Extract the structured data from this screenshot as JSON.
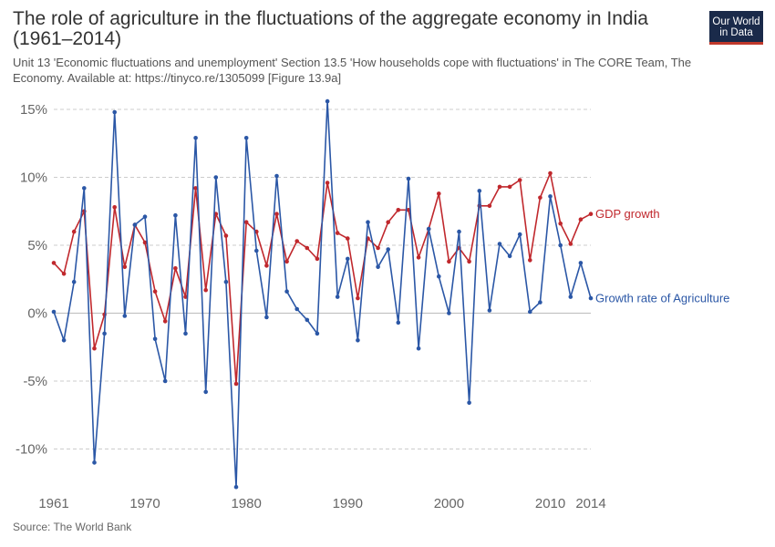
{
  "header": {
    "title": "The role of agriculture in the fluctuations of the aggregate economy in India (1961–2014)",
    "subtitle": "Unit 13 'Economic fluctuations and unemployment' Section 13.5 'How households cope with fluctuations' in The CORE Team, The Economy. Available at: https://tinyco.re/1305099 [Figure 13.9a]"
  },
  "logo": {
    "line1": "Our World",
    "line2": "in Data"
  },
  "footer": {
    "source": "Source: The World Bank"
  },
  "colors": {
    "gdp": "#c0282d",
    "agri": "#2b57a6",
    "grid": "#cccccc",
    "zero": "#bbbbbb"
  },
  "chart_data": {
    "type": "line",
    "title": "The role of agriculture in the fluctuations of the aggregate economy in India (1961–2014)",
    "xlim": [
      1961,
      2014
    ],
    "ylim": [
      -13,
      16
    ],
    "x_ticks": [
      1961,
      1970,
      1980,
      1990,
      2000,
      2010,
      2014
    ],
    "y_ticks": [
      {
        "value": 15,
        "label": "15%"
      },
      {
        "value": 10,
        "label": "10%"
      },
      {
        "value": 5,
        "label": "5%"
      },
      {
        "value": 0,
        "label": "0%"
      },
      {
        "value": -5,
        "label": "-5%"
      },
      {
        "value": -10,
        "label": "-10%"
      }
    ],
    "grid": true,
    "x": [
      1961,
      1962,
      1963,
      1964,
      1965,
      1966,
      1967,
      1968,
      1969,
      1970,
      1971,
      1972,
      1973,
      1974,
      1975,
      1976,
      1977,
      1978,
      1979,
      1980,
      1981,
      1982,
      1983,
      1984,
      1985,
      1986,
      1987,
      1988,
      1989,
      1990,
      1991,
      1992,
      1993,
      1994,
      1995,
      1996,
      1997,
      1998,
      1999,
      2000,
      2001,
      2002,
      2003,
      2004,
      2005,
      2006,
      2007,
      2008,
      2009,
      2010,
      2011,
      2012,
      2013,
      2014
    ],
    "series": [
      {
        "name": "GDP growth",
        "color": "#c0282d",
        "values": [
          3.7,
          2.9,
          6.0,
          7.5,
          -2.6,
          -0.1,
          7.8,
          3.4,
          6.5,
          5.2,
          1.6,
          -0.6,
          3.3,
          1.2,
          9.2,
          1.7,
          7.3,
          5.7,
          -5.2,
          6.7,
          6.0,
          3.5,
          7.3,
          3.8,
          5.3,
          4.8,
          4.0,
          9.6,
          5.9,
          5.5,
          1.1,
          5.5,
          4.8,
          6.7,
          7.6,
          7.6,
          4.1,
          6.2,
          8.8,
          3.8,
          4.8,
          3.8,
          7.9,
          7.9,
          9.3,
          9.3,
          9.8,
          3.9,
          8.5,
          10.3,
          6.6,
          5.1,
          6.9,
          7.3
        ]
      },
      {
        "name": "Growth rate of Agriculture",
        "color": "#2b57a6",
        "values": [
          0.1,
          -2.0,
          2.3,
          9.2,
          -11.0,
          -1.5,
          14.8,
          -0.2,
          6.5,
          7.1,
          -1.9,
          -5.0,
          7.2,
          -1.5,
          12.9,
          -5.8,
          10.0,
          2.3,
          -12.8,
          12.9,
          4.6,
          -0.3,
          10.1,
          1.6,
          0.3,
          -0.5,
          -1.5,
          15.6,
          1.2,
          4.0,
          -2.0,
          6.7,
          3.4,
          4.7,
          -0.7,
          9.9,
          -2.6,
          6.2,
          2.7,
          0.0,
          6.0,
          -6.6,
          9.0,
          0.2,
          5.1,
          4.2,
          5.8,
          0.1,
          0.8,
          8.6,
          5.0,
          1.2,
          3.7,
          1.1
        ]
      }
    ]
  }
}
